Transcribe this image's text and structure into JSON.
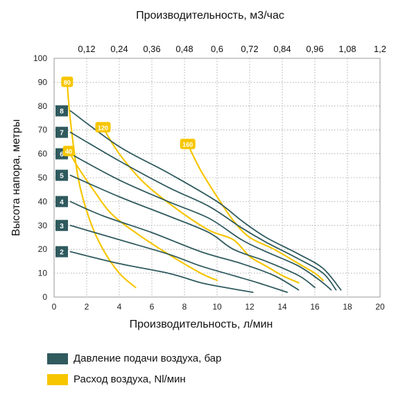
{
  "chart_data": {
    "type": "line",
    "xlabel": "Производительность, л/мин",
    "ylabel": "Высота напора, метры",
    "x2label": "Производительность, м3/час",
    "xlim": [
      0,
      20
    ],
    "ylim": [
      0,
      100
    ],
    "x_ticks": [
      "0",
      "2",
      "4",
      "6",
      "8",
      "10",
      "12",
      "14",
      "16",
      "18",
      "20"
    ],
    "y_ticks": [
      "0",
      "10",
      "20",
      "30",
      "40",
      "50",
      "60",
      "70",
      "80",
      "90",
      "100"
    ],
    "x2_ticks": [
      "0,12",
      "0,24",
      "0,36",
      "0,48",
      "0,6",
      "0,72",
      "0,84",
      "0,96",
      "1,08",
      "1,2"
    ],
    "grid": true,
    "legend_position": "bottom",
    "legend": [
      {
        "label": "Давление подачи воздуха, бар",
        "color": "#2f5a5e"
      },
      {
        "label": "Расход воздуха, Nl/мин",
        "color": "#f7c600"
      }
    ],
    "pressure_series": [
      {
        "name": "8",
        "color": "#2f5a5e",
        "points": [
          [
            1.0,
            78
          ],
          [
            4.0,
            63
          ],
          [
            7.0,
            52
          ],
          [
            10.0,
            40
          ],
          [
            11.5,
            32
          ],
          [
            13.0,
            25
          ],
          [
            15.0,
            18
          ],
          [
            16.5,
            12
          ],
          [
            17.6,
            3
          ]
        ]
      },
      {
        "name": "7",
        "color": "#2f5a5e",
        "points": [
          [
            1.0,
            69
          ],
          [
            4.0,
            57
          ],
          [
            7.0,
            46
          ],
          [
            9.5,
            38
          ],
          [
            11.5,
            29
          ],
          [
            13.0,
            23
          ],
          [
            15.0,
            16
          ],
          [
            16.5,
            10
          ],
          [
            17.3,
            3
          ]
        ]
      },
      {
        "name": "6",
        "color": "#2f5a5e",
        "points": [
          [
            1.0,
            60
          ],
          [
            4.0,
            49
          ],
          [
            7.0,
            40
          ],
          [
            9.5,
            33
          ],
          [
            11.5,
            24
          ],
          [
            13.0,
            19
          ],
          [
            15.0,
            13
          ],
          [
            16.3,
            7
          ],
          [
            17.0,
            3
          ]
        ]
      },
      {
        "name": "5",
        "color": "#2f5a5e",
        "points": [
          [
            1.0,
            51
          ],
          [
            4.0,
            42
          ],
          [
            7.0,
            34
          ],
          [
            9.5,
            27
          ],
          [
            11.0,
            20
          ],
          [
            13.0,
            15
          ],
          [
            15.0,
            9
          ],
          [
            16.0,
            4
          ]
        ]
      },
      {
        "name": "4",
        "color": "#2f5a5e",
        "points": [
          [
            1.0,
            40
          ],
          [
            3.0,
            34
          ],
          [
            6.0,
            27
          ],
          [
            9.0,
            19
          ],
          [
            11.5,
            14
          ],
          [
            13.5,
            9
          ],
          [
            15.0,
            3
          ]
        ]
      },
      {
        "name": "3",
        "color": "#2f5a5e",
        "points": [
          [
            1.0,
            30
          ],
          [
            4.0,
            24
          ],
          [
            7.0,
            18
          ],
          [
            9.0,
            13
          ],
          [
            11.0,
            9
          ],
          [
            12.5,
            6
          ],
          [
            14.3,
            2
          ]
        ]
      },
      {
        "name": "2",
        "color": "#2f5a5e",
        "points": [
          [
            1.0,
            19
          ],
          [
            4.0,
            14
          ],
          [
            7.0,
            10
          ],
          [
            9.0,
            6
          ],
          [
            10.5,
            4
          ],
          [
            12.2,
            2
          ]
        ]
      }
    ],
    "airflow_series": [
      {
        "name": "80",
        "color": "#f7c600",
        "points": [
          [
            0.8,
            90
          ],
          [
            1.0,
            74
          ],
          [
            1.5,
            49
          ],
          [
            2.2,
            32
          ],
          [
            3.0,
            20
          ],
          [
            4.0,
            10
          ],
          [
            5.0,
            4
          ]
        ]
      },
      {
        "name": "40",
        "color": "#f7c600",
        "points": [
          [
            0.9,
            61
          ],
          [
            1.5,
            54
          ],
          [
            2.5,
            44
          ],
          [
            3.5,
            35
          ],
          [
            5.0,
            27
          ],
          [
            7.0,
            18
          ],
          [
            9.0,
            10
          ],
          [
            10.0,
            7
          ]
        ]
      },
      {
        "name": "120",
        "color": "#f7c600",
        "points": [
          [
            3.0,
            71
          ],
          [
            4.0,
            60
          ],
          [
            5.5,
            48
          ],
          [
            7.5,
            37
          ],
          [
            9.5,
            28
          ],
          [
            11.0,
            24
          ],
          [
            12.0,
            17
          ],
          [
            13.0,
            13
          ],
          [
            14.0,
            9
          ],
          [
            15.0,
            6
          ]
        ]
      },
      {
        "name": "160",
        "color": "#f7c600",
        "points": [
          [
            8.2,
            64
          ],
          [
            9.0,
            53
          ],
          [
            10.0,
            42
          ],
          [
            11.0,
            32
          ],
          [
            12.0,
            25
          ],
          [
            13.5,
            20
          ],
          [
            15.0,
            14
          ],
          [
            16.0,
            10
          ],
          [
            16.5,
            7
          ]
        ]
      }
    ]
  }
}
